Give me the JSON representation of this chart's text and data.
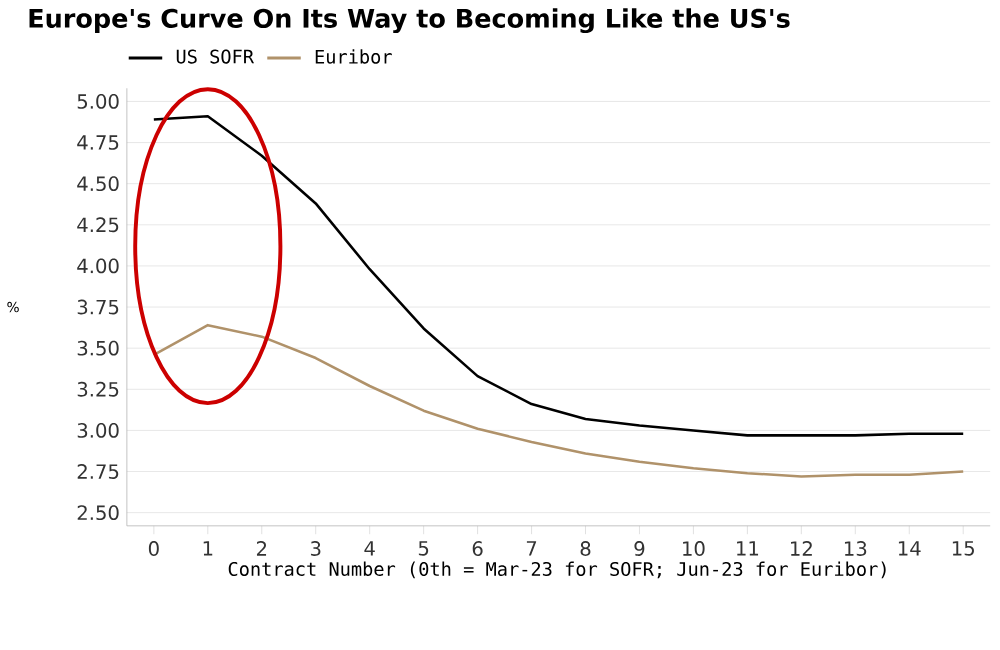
{
  "chart_data": {
    "type": "line",
    "title": "Europe's Curve On Its Way to Becoming Like the US's",
    "xlabel": "Contract Number (0th = Mar-23 for SOFR; Jun-23 for Euribor)",
    "ylabel": "%",
    "x": [
      0,
      1,
      2,
      3,
      4,
      5,
      6,
      7,
      8,
      9,
      10,
      11,
      12,
      13,
      14,
      15
    ],
    "series": [
      {
        "name": "US SOFR",
        "color": "#000000",
        "values": [
          4.89,
          4.91,
          4.67,
          4.38,
          3.98,
          3.62,
          3.33,
          3.16,
          3.07,
          3.03,
          3.0,
          2.97,
          2.97,
          2.97,
          2.98,
          2.98
        ]
      },
      {
        "name": "Euribor",
        "color": "#b0926a",
        "values": [
          3.46,
          3.64,
          3.57,
          3.44,
          3.27,
          3.12,
          3.01,
          2.93,
          2.86,
          2.81,
          2.77,
          2.74,
          2.72,
          2.73,
          2.73,
          2.75
        ]
      }
    ],
    "xlim": [
      -0.5,
      15.5
    ],
    "ylim": [
      2.42,
      5.08
    ],
    "xticks": [
      0,
      1,
      2,
      3,
      4,
      5,
      6,
      7,
      8,
      9,
      10,
      11,
      12,
      13,
      14,
      15
    ],
    "yticks": [
      {
        "value": 2.5,
        "label": "2.50"
      },
      {
        "value": 2.75,
        "label": "2.75"
      },
      {
        "value": 3.0,
        "label": "3.00"
      },
      {
        "value": 3.25,
        "label": "3.25"
      },
      {
        "value": 3.5,
        "label": "3.50"
      },
      {
        "value": 3.75,
        "label": "3.75"
      },
      {
        "value": 4.0,
        "label": "4.00"
      },
      {
        "value": 4.25,
        "label": "4.25"
      },
      {
        "value": 4.5,
        "label": "4.50"
      },
      {
        "value": 4.75,
        "label": "4.75"
      },
      {
        "value": 5.0,
        "label": "5.00"
      }
    ],
    "grid": "y",
    "legend": "top left",
    "marker": "none",
    "line_style": "solid"
  }
}
